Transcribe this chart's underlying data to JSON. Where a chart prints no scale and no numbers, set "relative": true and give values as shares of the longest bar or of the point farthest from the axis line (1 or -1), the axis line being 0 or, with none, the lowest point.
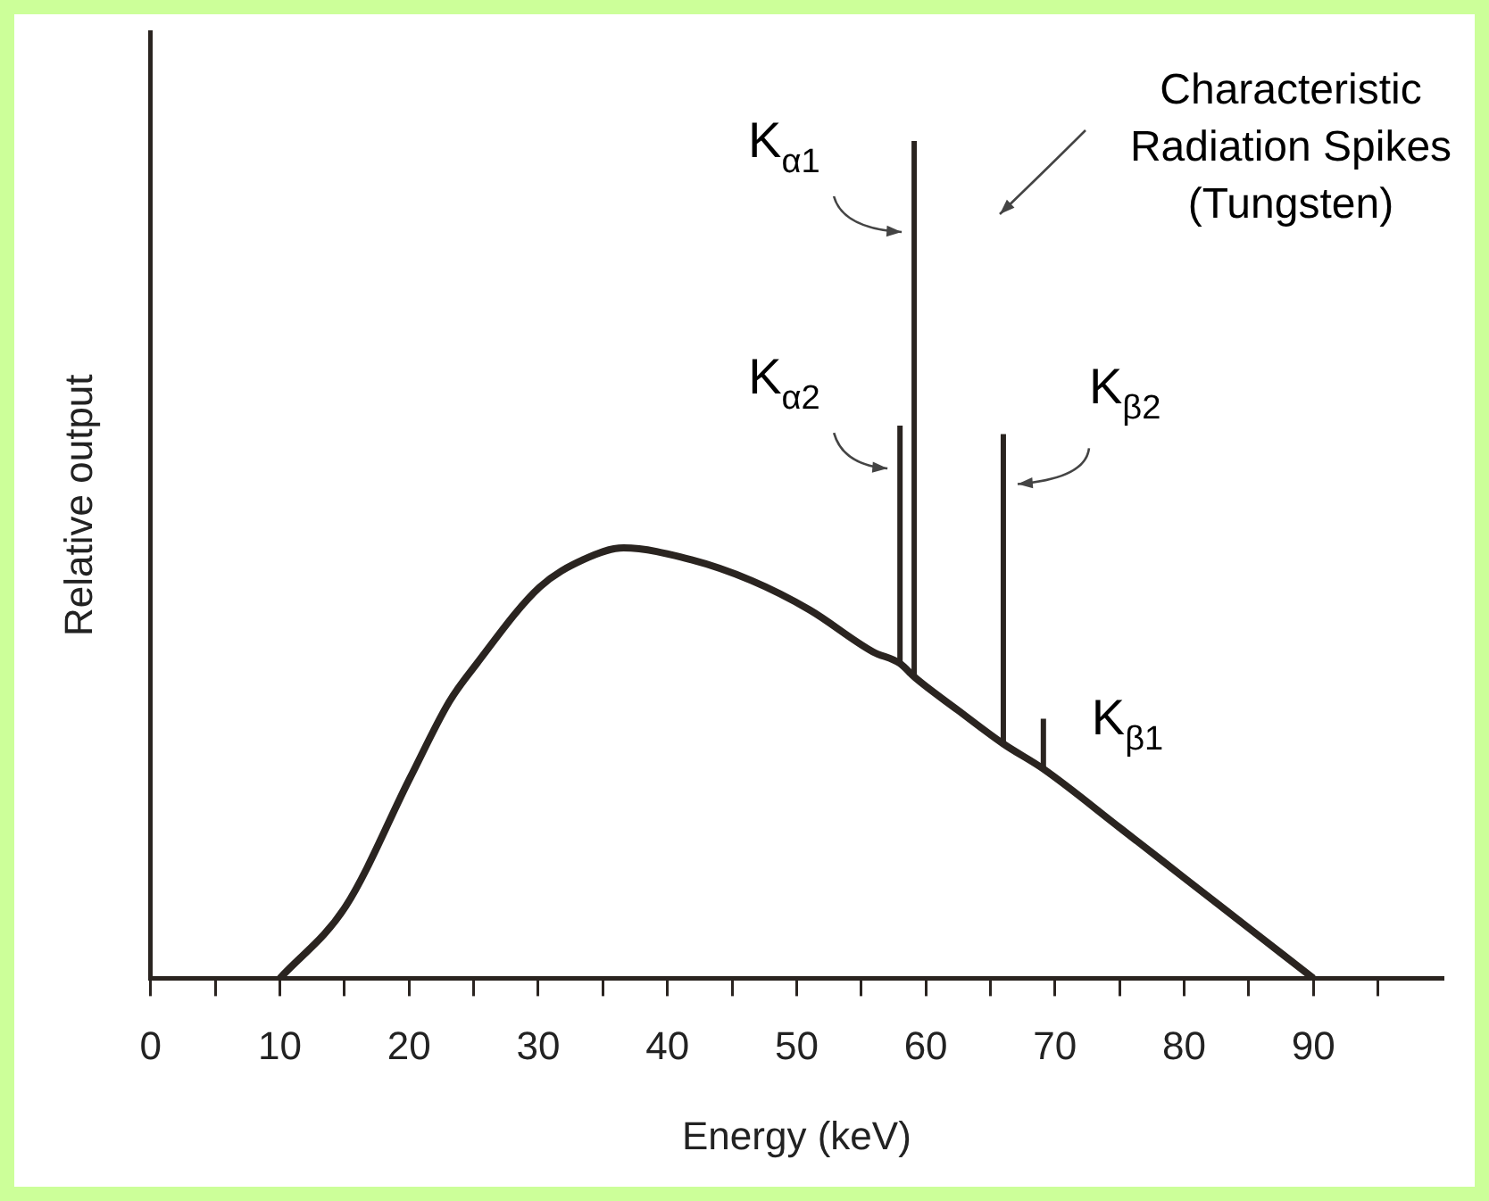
{
  "chart_data": {
    "type": "line",
    "relative": true,
    "xlabel": "Energy (keV)",
    "ylabel": "Relative output",
    "xlim": [
      0,
      100
    ],
    "xticks": [
      0,
      {
        "value": 5,
        "label": null
      },
      10,
      {
        "value": 15,
        "label": null
      },
      20,
      {
        "value": 25,
        "label": null
      },
      30,
      {
        "value": 35,
        "label": null
      },
      40,
      {
        "value": 45,
        "label": null
      },
      50,
      {
        "value": 55,
        "label": null
      },
      60,
      {
        "value": 65,
        "label": null
      },
      70,
      {
        "value": 75,
        "label": null
      },
      80,
      {
        "value": 85,
        "label": null
      },
      90,
      {
        "value": 95,
        "label": null
      }
    ],
    "series": [
      {
        "color": "#2a2420",
        "x": [
          10,
          15.1,
          20.1,
          23.1,
          25.2,
          30.1,
          33.5,
          36.6,
          41.8,
          46.5,
          51,
          55.9,
          58,
          59.1,
          62.5,
          66,
          69.1,
          75,
          80,
          85,
          90
        ],
        "values": [
          0,
          0.086,
          0.24,
          0.33,
          0.375,
          0.467,
          0.5,
          0.514,
          0.5,
          0.475,
          0.44,
          0.39,
          0.376,
          0.36,
          0.32,
          0.28,
          0.25,
          0.18,
          0.12,
          0.06,
          0
        ]
      },
      {
        "color": "#2a2420",
        "x": [
          59.1,
          59.1
        ],
        "values": [
          0.36,
          1
        ]
      },
      {
        "color": "#2a2420",
        "x": [
          58,
          58
        ],
        "values": [
          0.376,
          0.66
        ]
      },
      {
        "color": "#2a2420",
        "x": [
          66,
          66
        ],
        "values": [
          0.28,
          0.65
        ]
      },
      {
        "color": "#2a2420",
        "x": [
          69.1,
          69.1
        ],
        "values": [
          0.25,
          0.31
        ]
      }
    ],
    "annotations": [
      {
        "text": "K$_{α1}$",
        "x": 59.1,
        "y": 1
      },
      {
        "text": "K$_{α2}$",
        "x": 58,
        "y": 0.66
      },
      {
        "text": "K$_{β2}$",
        "x": 66,
        "y": 0.65
      },
      {
        "text": "K$_{β1}$",
        "x": 69.1,
        "y": 0.31
      },
      "Characteristic Radiation Spikes (Tungsten)"
    ]
  }
}
